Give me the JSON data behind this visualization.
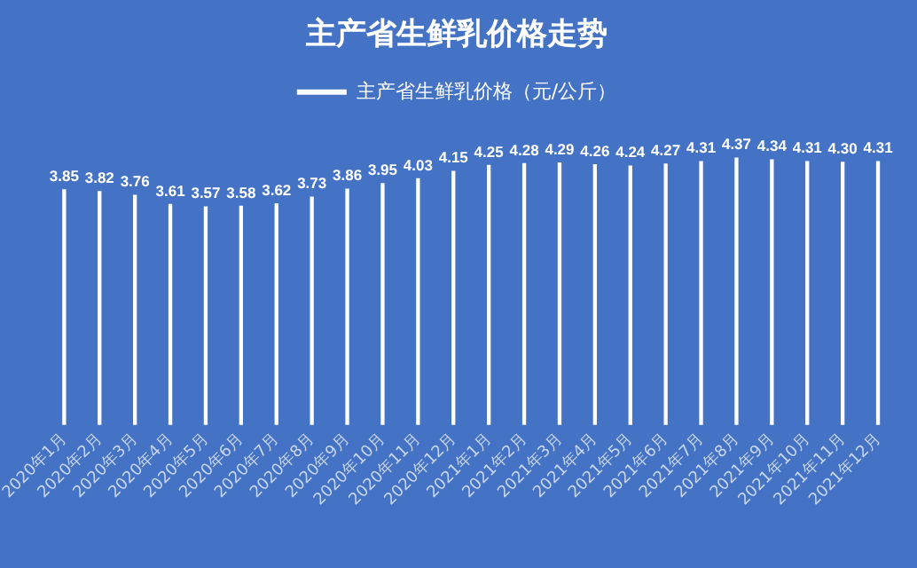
{
  "chart_data": {
    "type": "bar",
    "title": "主产省生鲜乳价格走势",
    "categories": [
      "2020年1月",
      "2020年2月",
      "2020年3月",
      "2020年4月",
      "2020年5月",
      "2020年6月",
      "2020年7月",
      "2020年8月",
      "2020年9月",
      "2020年10月",
      "2020年11月",
      "2020年12月",
      "2021年1月",
      "2021年2月",
      "2021年3月",
      "2021年4月",
      "2021年5月",
      "2021年6月",
      "2021年7月",
      "2021年8月",
      "2021年9月",
      "2021年10月",
      "2021年11月",
      "2021年12月"
    ],
    "series": [
      {
        "name": "主产省生鲜乳价格（元/公斤）",
        "color": "#ffffff",
        "values": [
          3.85,
          3.82,
          3.76,
          3.61,
          3.57,
          3.58,
          3.62,
          3.73,
          3.86,
          3.95,
          4.03,
          4.15,
          4.25,
          4.28,
          4.29,
          4.26,
          4.24,
          4.27,
          4.31,
          4.37,
          4.34,
          4.31,
          4.3,
          4.31
        ],
        "value_labels": [
          "3.85",
          "3.82",
          "3.76",
          "3.61",
          "3.57",
          "3.58",
          "3.62",
          "3.73",
          "3.86",
          "3.95",
          "4.03",
          "4.15",
          "4.25",
          "4.28",
          "4.29",
          "4.26",
          "4.24",
          "4.27",
          "4.31",
          "4.37",
          "4.34",
          "4.31",
          "4.30",
          "4.31"
        ]
      }
    ],
    "legend": "top",
    "grid": false,
    "tick_labels": "x"
  }
}
